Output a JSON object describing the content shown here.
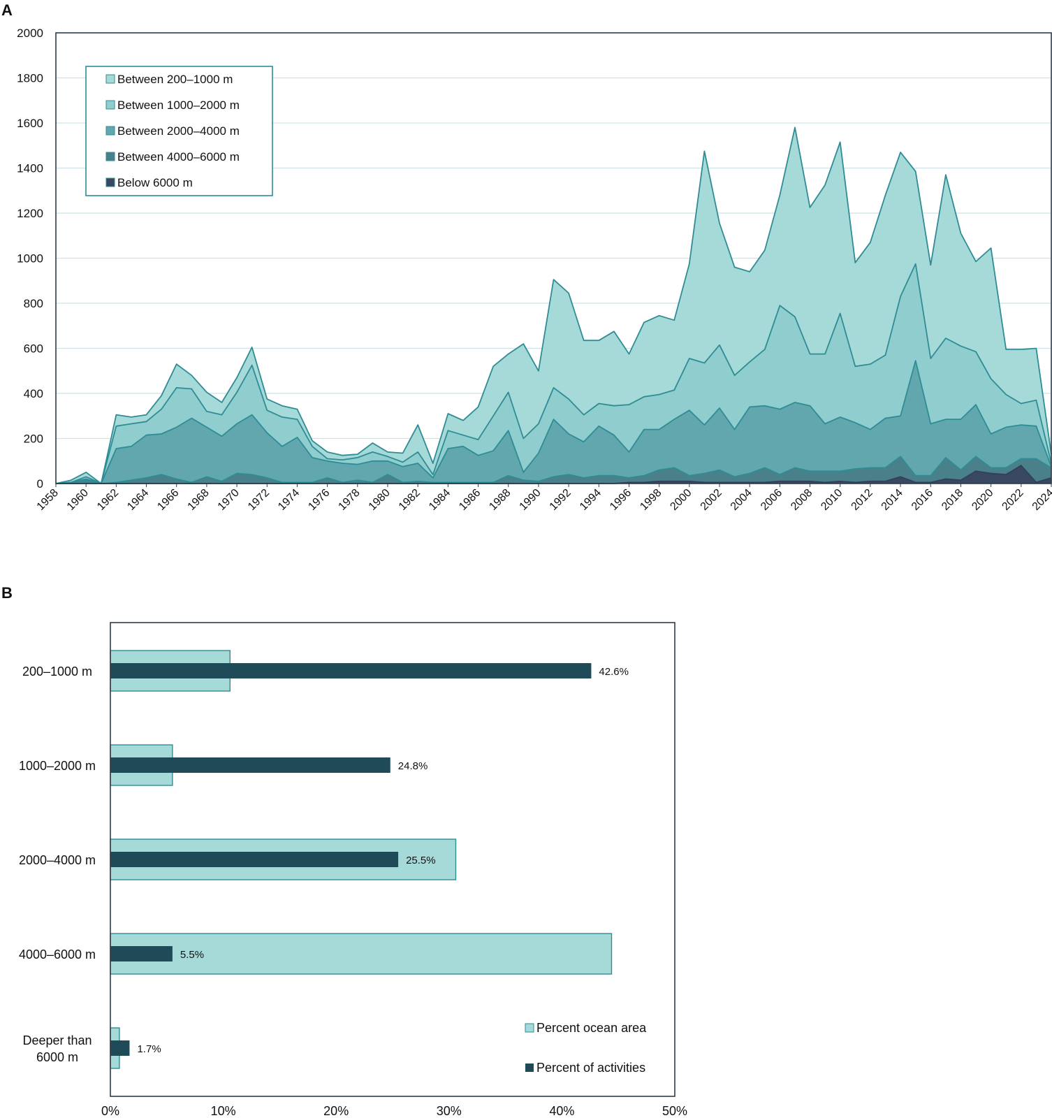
{
  "panels": {
    "a_label": "A",
    "b_label": "B"
  },
  "colors": {
    "d200_1000": "#a6dad8",
    "d1000_2000": "#8fcdcf",
    "d2000_4000": "#62a7ad",
    "d4000_6000": "#49808a",
    "below6000": "#3a4760",
    "line": "#2f8c95",
    "ocean_bar": "#a6dad8",
    "activity_bar": "#1f4b58",
    "grid": "#cfe3e6",
    "frame": "#2f3b48"
  },
  "chart_data": [
    {
      "id": "A",
      "type": "area",
      "stacked": true,
      "title": "",
      "xlabel": "",
      "ylabel": "",
      "x": [
        1958,
        1959,
        1960,
        1961,
        1962,
        1963,
        1964,
        1965,
        1966,
        1967,
        1968,
        1969,
        1970,
        1971,
        1972,
        1973,
        1974,
        1975,
        1976,
        1977,
        1978,
        1979,
        1980,
        1981,
        1982,
        1983,
        1984,
        1985,
        1986,
        1987,
        1988,
        1989,
        1990,
        1991,
        1992,
        1993,
        1994,
        1995,
        1996,
        1997,
        1998,
        1999,
        2000,
        2001,
        2002,
        2003,
        2004,
        2005,
        2006,
        2007,
        2008,
        2009,
        2010,
        2011,
        2012,
        2013,
        2014,
        2015,
        2016,
        2017,
        2018,
        2019,
        2020,
        2021,
        2022,
        2023,
        2024
      ],
      "xticks": [
        "1958",
        "1960",
        "1962",
        "1964",
        "1966",
        "1968",
        "1970",
        "1972",
        "1974",
        "1976",
        "1978",
        "1980",
        "1982",
        "1984",
        "1986",
        "1988",
        "1990",
        "1992",
        "1994",
        "1996",
        "1998",
        "2000",
        "2002",
        "2004",
        "2006",
        "2008",
        "2010",
        "2012",
        "2014",
        "2016",
        "2018",
        "2020",
        "2022",
        "2024"
      ],
      "yticks": [
        "0",
        "200",
        "400",
        "600",
        "800",
        "1000",
        "1200",
        "1400",
        "1600",
        "1800",
        "2000"
      ],
      "ylim": [
        0,
        2000
      ],
      "grid": true,
      "legend_position": "top-left",
      "series": [
        {
          "name": "Below 6000 m",
          "color_key": "below6000",
          "values": [
            0,
            0,
            0,
            0,
            0,
            0,
            0,
            0,
            0,
            0,
            0,
            0,
            0,
            0,
            0,
            0,
            0,
            0,
            0,
            0,
            0,
            0,
            0,
            0,
            0,
            0,
            0,
            0,
            0,
            0,
            0,
            0,
            0,
            0,
            0,
            0,
            0,
            0,
            5,
            5,
            10,
            10,
            10,
            5,
            5,
            5,
            5,
            5,
            10,
            10,
            10,
            5,
            10,
            5,
            10,
            10,
            30,
            5,
            5,
            20,
            15,
            55,
            45,
            40,
            80,
            5,
            25
          ]
        },
        {
          "name": "Between 4000–6000 m",
          "color_key": "d4000_6000",
          "values": [
            0,
            5,
            15,
            0,
            5,
            15,
            25,
            40,
            20,
            5,
            30,
            10,
            45,
            40,
            25,
            5,
            5,
            5,
            25,
            5,
            15,
            5,
            40,
            5,
            10,
            5,
            5,
            5,
            5,
            5,
            35,
            15,
            10,
            30,
            40,
            25,
            35,
            35,
            20,
            30,
            50,
            60,
            25,
            40,
            55,
            25,
            40,
            65,
            30,
            60,
            45,
            50,
            45,
            60,
            60,
            60,
            90,
            30,
            30,
            95,
            45,
            65,
            25,
            30,
            30,
            105,
            45
          ]
        },
        {
          "name": "Between 2000–4000 m",
          "color_key": "d2000_4000",
          "values": [
            0,
            0,
            5,
            0,
            150,
            150,
            190,
            180,
            230,
            285,
            220,
            200,
            220,
            265,
            200,
            160,
            200,
            110,
            75,
            85,
            70,
            95,
            60,
            70,
            80,
            20,
            150,
            160,
            120,
            140,
            200,
            35,
            125,
            255,
            180,
            160,
            220,
            180,
            115,
            205,
            180,
            215,
            290,
            215,
            275,
            210,
            295,
            275,
            290,
            290,
            290,
            210,
            240,
            205,
            170,
            220,
            180,
            510,
            230,
            170,
            225,
            230,
            150,
            180,
            150,
            145,
            5
          ]
        },
        {
          "name": "Between 1000–2000 m",
          "color_key": "d1000_2000",
          "values": [
            0,
            0,
            10,
            0,
            100,
            100,
            60,
            110,
            175,
            130,
            70,
            95,
            140,
            220,
            100,
            130,
            80,
            50,
            10,
            15,
            30,
            40,
            20,
            20,
            50,
            15,
            80,
            50,
            70,
            155,
            170,
            150,
            130,
            140,
            155,
            120,
            100,
            130,
            210,
            145,
            155,
            130,
            230,
            275,
            280,
            240,
            200,
            250,
            460,
            380,
            230,
            310,
            460,
            250,
            290,
            280,
            530,
            430,
            290,
            360,
            325,
            235,
            245,
            145,
            95,
            115,
            15
          ]
        },
        {
          "name": "Between 200–1000 m",
          "color_key": "d200_1000",
          "values": [
            0,
            10,
            20,
            0,
            50,
            30,
            30,
            60,
            105,
            60,
            85,
            55,
            65,
            80,
            50,
            50,
            45,
            25,
            30,
            20,
            15,
            40,
            20,
            40,
            120,
            50,
            75,
            65,
            145,
            220,
            170,
            420,
            235,
            480,
            470,
            330,
            280,
            330,
            225,
            330,
            350,
            310,
            420,
            940,
            540,
            480,
            400,
            440,
            490,
            840,
            650,
            750,
            760,
            460,
            540,
            710,
            640,
            410,
            415,
            725,
            500,
            400,
            580,
            200,
            240,
            230,
            40
          ]
        }
      ]
    },
    {
      "id": "B",
      "type": "bar",
      "orientation": "horizontal",
      "categories": [
        "200–1000 m",
        "1000–2000 m",
        "2000–4000 m",
        "4000–6000 m",
        "Deeper than 6000 m"
      ],
      "category_lines": [
        [
          "200–1000 m"
        ],
        [
          "1000–2000 m"
        ],
        [
          "2000–4000 m"
        ],
        [
          "4000–6000 m"
        ],
        [
          "Deeper than",
          "6000 m"
        ]
      ],
      "series": [
        {
          "name": "Percent ocean area",
          "color_key": "ocean_bar",
          "values": [
            10.6,
            5.5,
            30.6,
            44.4,
            0.8
          ]
        },
        {
          "name": "Percent of activities",
          "color_key": "activity_bar",
          "values": [
            42.6,
            24.8,
            25.5,
            5.5,
            1.7
          ]
        }
      ],
      "data_labels": [
        "42.6%",
        "24.8%",
        "25.5%",
        "5.5%",
        "1.7%"
      ],
      "xticks": [
        "0%",
        "10%",
        "20%",
        "30%",
        "40%",
        "50%"
      ],
      "xlim": [
        0,
        50
      ],
      "grid": false,
      "legend_position": "bottom-right"
    }
  ]
}
